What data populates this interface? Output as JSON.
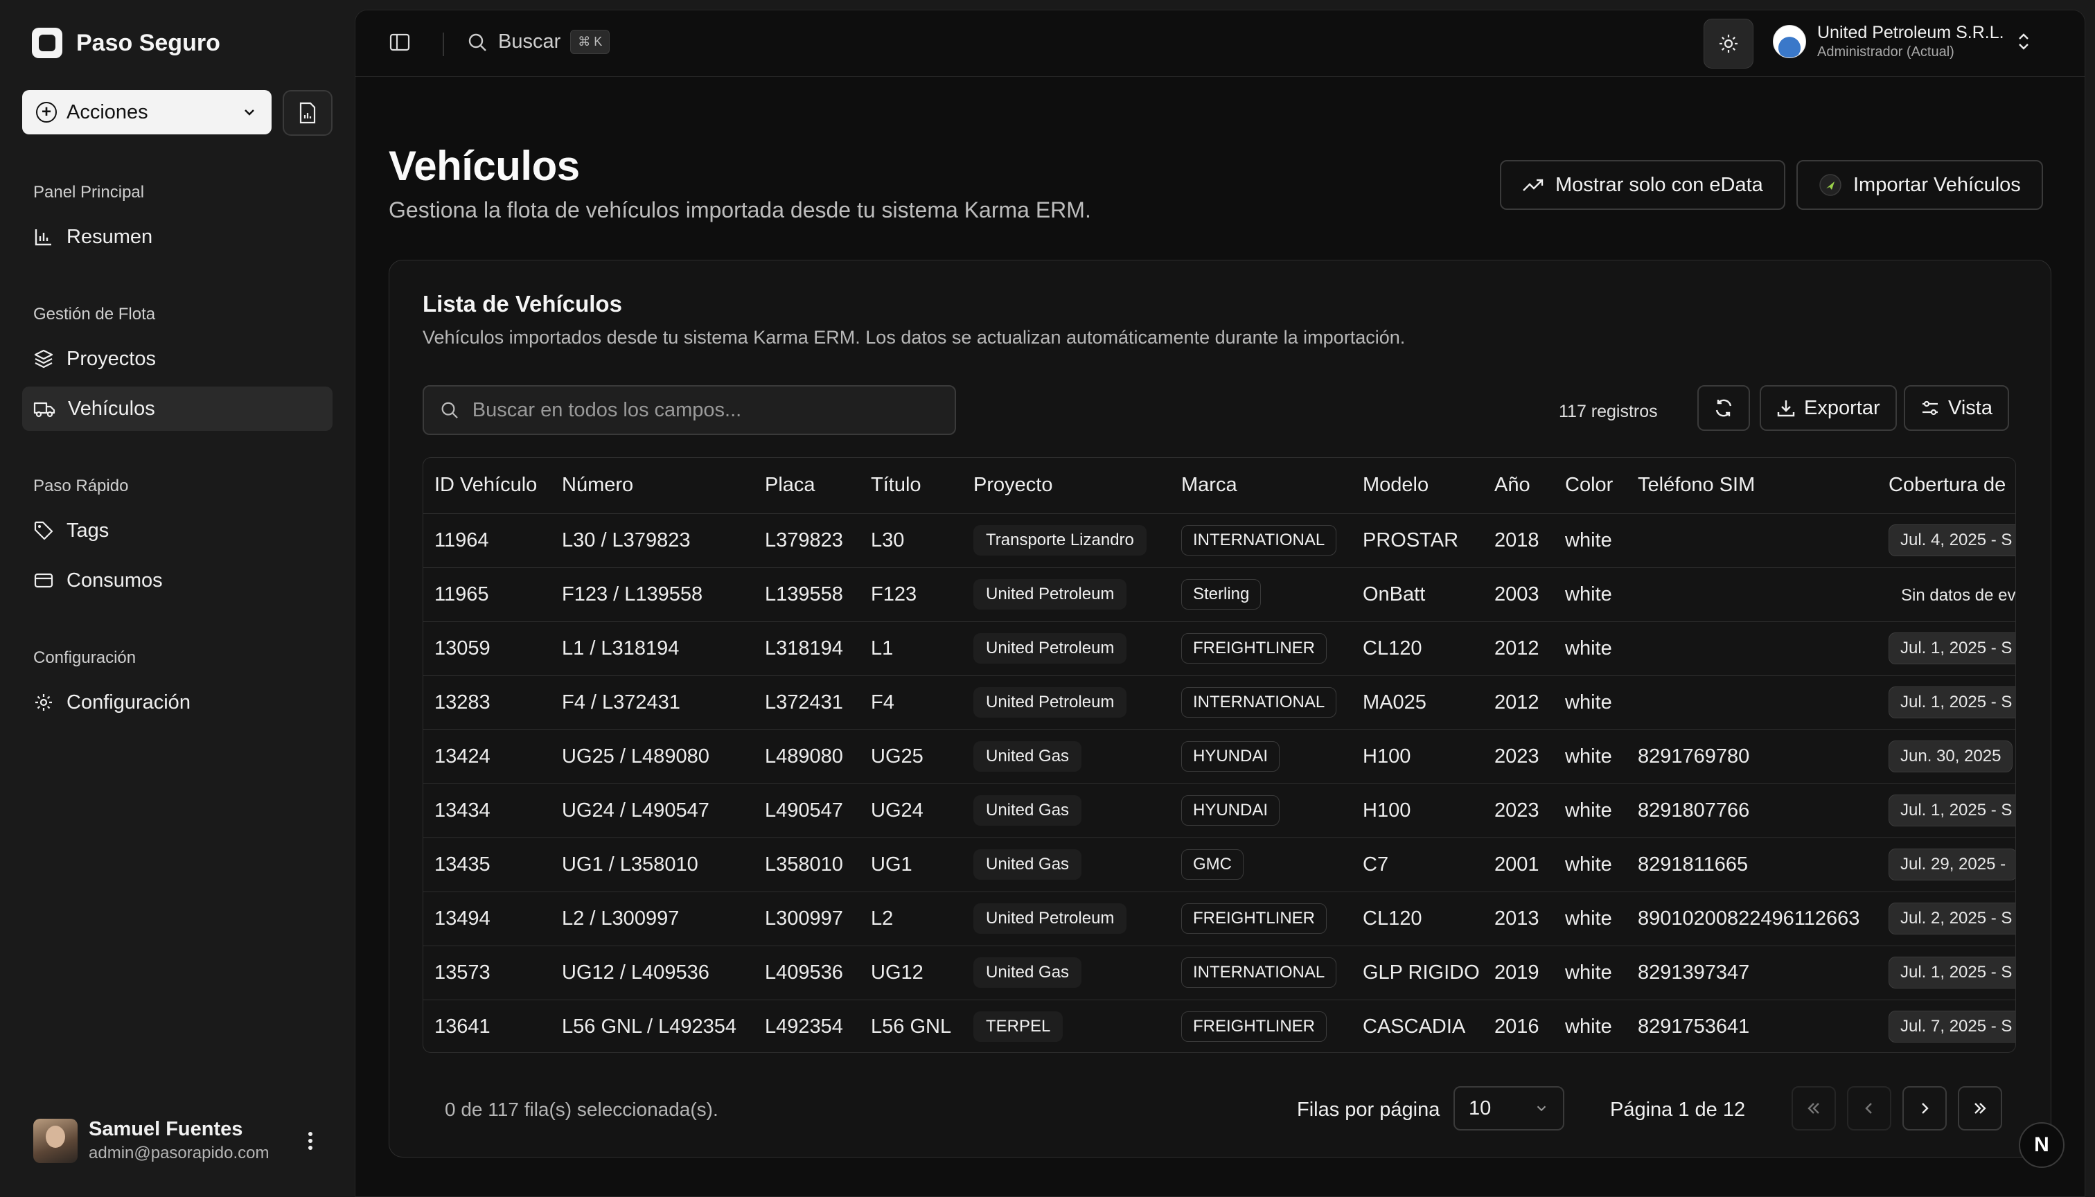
{
  "brand": {
    "name": "Paso Seguro"
  },
  "sidebar": {
    "actions_label": "Acciones",
    "groups": [
      {
        "label": "Panel Principal",
        "items": [
          {
            "label": "Resumen",
            "icon": "bar-chart-icon"
          }
        ]
      },
      {
        "label": "Gestión de Flota",
        "items": [
          {
            "label": "Proyectos",
            "icon": "layers-icon"
          },
          {
            "label": "Vehículos",
            "icon": "truck-icon",
            "active": true
          }
        ]
      },
      {
        "label": "Paso Rápido",
        "items": [
          {
            "label": "Tags",
            "icon": "tag-icon"
          },
          {
            "label": "Consumos",
            "icon": "credit-card-icon"
          }
        ]
      },
      {
        "label": "Configuración",
        "items": [
          {
            "label": "Configuración",
            "icon": "gear-icon"
          }
        ]
      }
    ],
    "user": {
      "name": "Samuel Fuentes",
      "email": "admin@pasorapido.com"
    }
  },
  "topbar": {
    "search_label": "Buscar",
    "search_shortcut": "⌘ K",
    "org": {
      "name": "United Petroleum S.R.L.",
      "role": "Administrador (Actual)"
    }
  },
  "page": {
    "title": "Vehículos",
    "subtitle": "Gestiona la flota de vehículos importada desde tu sistema Karma ERM.",
    "btn_edata": "Mostrar solo con eData",
    "btn_import": "Importar Vehículos"
  },
  "card": {
    "title": "Lista de Vehículos",
    "subtitle": "Vehículos importados desde tu sistema Karma ERM. Los datos se actualizan automáticamente durante la importación.",
    "search_placeholder": "Buscar en todos los campos...",
    "records": "117 registros",
    "export_label": "Exportar",
    "view_label": "Vista"
  },
  "table": {
    "columns": [
      "ID Vehículo",
      "Número",
      "Placa",
      "Título",
      "Proyecto",
      "Marca",
      "Modelo",
      "Año",
      "Color",
      "Teléfono SIM",
      "Cobertura de"
    ],
    "rows": [
      {
        "id": "11964",
        "numero": "L30 / L379823",
        "placa": "L379823",
        "titulo": "L30",
        "proyecto": "Transporte Lizandro",
        "marca": "INTERNATIONAL",
        "modelo": "PROSTAR",
        "anio": "2018",
        "color": "white",
        "sim": "",
        "cobertura": "Jul. 4, 2025 - S",
        "cobertura_pill": true
      },
      {
        "id": "11965",
        "numero": "F123 / L139558",
        "placa": "L139558",
        "titulo": "F123",
        "proyecto": "United Petroleum",
        "marca": "Sterling",
        "modelo": "OnBatt",
        "anio": "2003",
        "color": "white",
        "sim": "",
        "cobertura": "Sin datos de ev",
        "cobertura_pill": false
      },
      {
        "id": "13059",
        "numero": "L1 / L318194",
        "placa": "L318194",
        "titulo": "L1",
        "proyecto": "United Petroleum",
        "marca": "FREIGHTLINER",
        "modelo": "CL120",
        "anio": "2012",
        "color": "white",
        "sim": "",
        "cobertura": "Jul. 1, 2025 - S",
        "cobertura_pill": true
      },
      {
        "id": "13283",
        "numero": "F4 / L372431",
        "placa": "L372431",
        "titulo": "F4",
        "proyecto": "United Petroleum",
        "marca": "INTERNATIONAL",
        "modelo": "MA025",
        "anio": "2012",
        "color": "white",
        "sim": "",
        "cobertura": "Jul. 1, 2025 - S",
        "cobertura_pill": true
      },
      {
        "id": "13424",
        "numero": "UG25 / L489080",
        "placa": "L489080",
        "titulo": "UG25",
        "proyecto": "United Gas",
        "marca": "HYUNDAI",
        "modelo": "H100",
        "anio": "2023",
        "color": "white",
        "sim": "8291769780",
        "cobertura": "Jun. 30, 2025",
        "cobertura_pill": true
      },
      {
        "id": "13434",
        "numero": "UG24 / L490547",
        "placa": "L490547",
        "titulo": "UG24",
        "proyecto": "United Gas",
        "marca": "HYUNDAI",
        "modelo": "H100",
        "anio": "2023",
        "color": "white",
        "sim": "8291807766",
        "cobertura": "Jul. 1, 2025 - S",
        "cobertura_pill": true
      },
      {
        "id": "13435",
        "numero": "UG1 / L358010",
        "placa": "L358010",
        "titulo": "UG1",
        "proyecto": "United Gas",
        "marca": "GMC",
        "modelo": "C7",
        "anio": "2001",
        "color": "white",
        "sim": "8291811665",
        "cobertura": "Jul. 29, 2025 -",
        "cobertura_pill": true
      },
      {
        "id": "13494",
        "numero": "L2 / L300997",
        "placa": "L300997",
        "titulo": "L2",
        "proyecto": "United Petroleum",
        "marca": "FREIGHTLINER",
        "modelo": "CL120",
        "anio": "2013",
        "color": "white",
        "sim": "89010200822496112663",
        "cobertura": "Jul. 2, 2025 - S",
        "cobertura_pill": true
      },
      {
        "id": "13573",
        "numero": "UG12 / L409536",
        "placa": "L409536",
        "titulo": "UG12",
        "proyecto": "United Gas",
        "marca": "INTERNATIONAL",
        "modelo": "GLP RIGIDO",
        "anio": "2019",
        "color": "white",
        "sim": "8291397347",
        "cobertura": "Jul. 1, 2025 - S",
        "cobertura_pill": true
      },
      {
        "id": "13641",
        "numero": "L56 GNL / L492354",
        "placa": "L492354",
        "titulo": "L56 GNL",
        "proyecto": "TERPEL",
        "marca": "FREIGHTLINER",
        "modelo": "CASCADIA",
        "anio": "2016",
        "color": "white",
        "sim": "8291753641",
        "cobertura": "Jul. 7, 2025 - S",
        "cobertura_pill": true
      }
    ]
  },
  "footer": {
    "selected": "0 de 117 fila(s) seleccionada(s).",
    "rows_per_page_label": "Filas por página",
    "rows_per_page": "10",
    "page_info": "Página 1 de 12"
  },
  "colors": {
    "background": "#0e0e0e",
    "sidebar": "#1a1a1a",
    "border": "#2e2e2e",
    "text": "#ededed"
  }
}
